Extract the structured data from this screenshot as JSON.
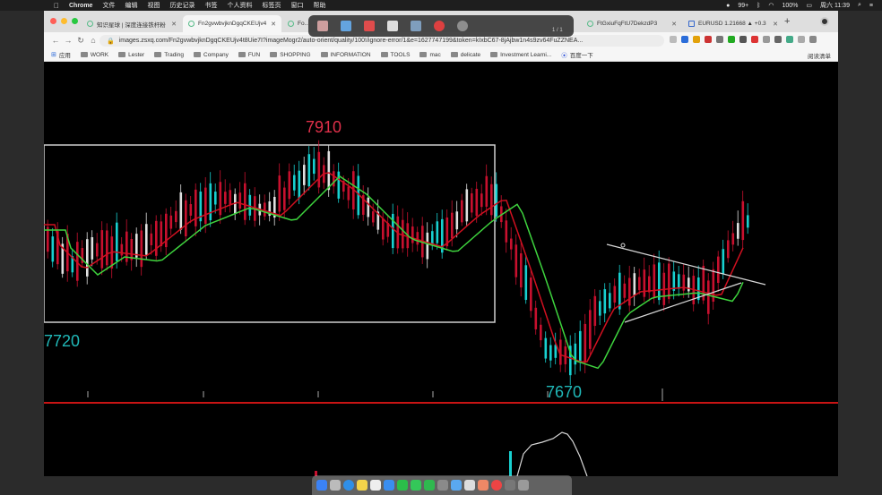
{
  "menubar": {
    "app_name": "Chrome",
    "items": [
      "文件",
      "编辑",
      "视图",
      "历史记录",
      "书签",
      "个人资料",
      "标签页",
      "窗口",
      "帮助"
    ],
    "status": {
      "notifications": "99+",
      "battery": "100%",
      "clock": "周六 11:39"
    }
  },
  "tabs": [
    {
      "title": "知识星球 | 深度连接铁杆粉",
      "active": false
    },
    {
      "title": "Fn2gvwbvjknDgqCKEUjv4",
      "active": true
    },
    {
      "title": "Fo...",
      "active": false
    },
    {
      "title": "FtGxiuFqFtU7DekzdP3",
      "active": false
    },
    {
      "title": "EURUSD 1.21668 ▲ +0.3",
      "active": false
    }
  ],
  "omnibox": {
    "url": "images.zsxq.com/Fn2gvwbvjknDgqCKEUjv4t8Uie7I?imageMogr2/auto-orient/quality/100!/ignore-error/1&e=1627747199&token=kIxbC67-8jAjbw1n4s9zv64FuZZNEA..."
  },
  "bookmarks": [
    "应用",
    "WORK",
    "Lester",
    "Trading",
    "Company",
    "FUN",
    "SHOPPING",
    "INFORMATION",
    "TOOLS",
    "mac",
    "delicate",
    "Investment Learni...",
    "百度一下"
  ],
  "reading_list": "阅读清单",
  "annotation_toolbar": {
    "page_indicator": "1 / 1"
  },
  "chart_data": {
    "type": "candlestick",
    "annotations": {
      "high_label": "7910",
      "low_label_left": "7720",
      "low_label_bottom": "7670"
    },
    "colors": {
      "up": "#e0e0e0",
      "up_cyan": "#18d0d0",
      "down": "#c8102e",
      "ma_fast": "#d01020",
      "ma_slow": "#3ed43e",
      "range_box": "#d0d0d0",
      "divider": "#c81414",
      "high_label": "#e0304a",
      "low_label": "#20b8b8"
    },
    "legend": "none",
    "grid": false
  },
  "dock": {
    "apps": [
      "finder",
      "launchpad",
      "safari",
      "notes",
      "calendar",
      "appstore",
      "wechat",
      "messages",
      "facetime",
      "settings",
      "mail",
      "preview",
      "photos",
      "chrome",
      "screenshot",
      "trash"
    ]
  }
}
